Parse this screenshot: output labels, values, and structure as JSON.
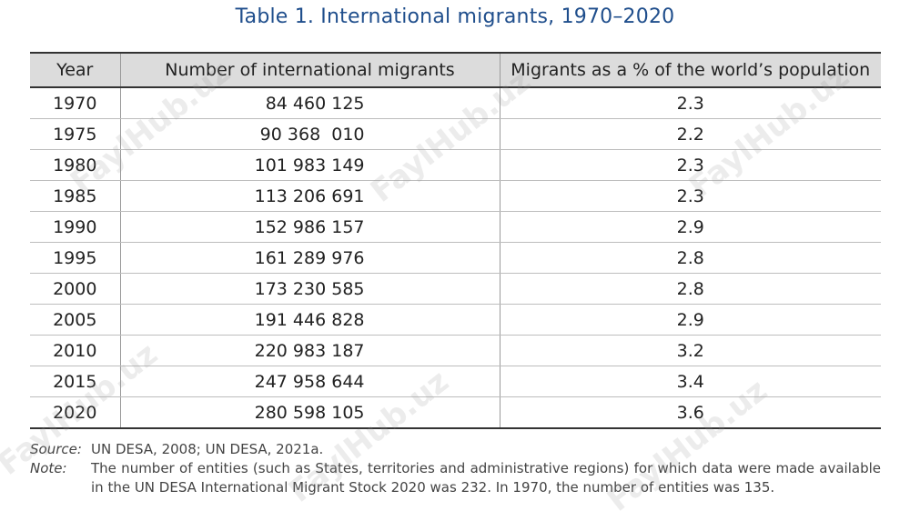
{
  "title": "Table 1. International migrants, 1970–2020",
  "chart_data": {
    "type": "table",
    "title": "Table 1. International migrants, 1970–2020",
    "columns": [
      "Year",
      "Number of international migrants",
      "Migrants as a % of the world’s population"
    ],
    "rows": [
      [
        "1970",
        "84 460 125",
        "2.3"
      ],
      [
        "1975",
        "90 368  010",
        "2.2"
      ],
      [
        "1980",
        "101 983 149",
        "2.3"
      ],
      [
        "1985",
        "113 206 691",
        "2.3"
      ],
      [
        "1990",
        "152 986 157",
        "2.9"
      ],
      [
        "1995",
        "161 289 976",
        "2.8"
      ],
      [
        "2000",
        "173 230 585",
        "2.8"
      ],
      [
        "2005",
        "191 446 828",
        "2.9"
      ],
      [
        "2010",
        "220 983 187",
        "3.2"
      ],
      [
        "2015",
        "247 958 644",
        "3.4"
      ],
      [
        "2020",
        "280 598 105",
        "3.6"
      ]
    ]
  },
  "notes": {
    "source_label": "Source:",
    "source_text": "UN DESA, 2008; UN DESA, 2021a.",
    "note_label": "Note:",
    "note_text": "The number of entities (such as States, territories and administrative regions) for which data were made available in the UN DESA International Migrant Stock 2020 was 232. In 1970, the number of entities was 135."
  },
  "watermark": "FaylHub.uz"
}
